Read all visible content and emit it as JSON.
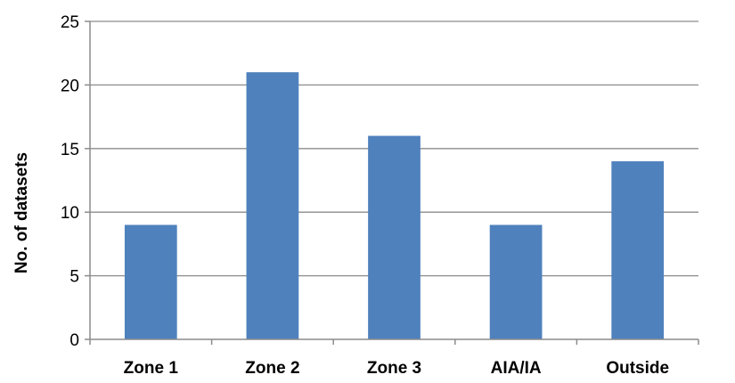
{
  "chart_data": {
    "type": "bar",
    "categories": [
      "Zone 1",
      "Zone 2",
      "Zone 3",
      "AIA/IA",
      "Outside"
    ],
    "values": [
      9,
      21,
      16,
      9,
      14
    ],
    "title": "",
    "xlabel": "",
    "ylabel": "No. of datasets",
    "ylim": [
      0,
      25
    ],
    "yticks": [
      "0",
      "5",
      "10",
      "15",
      "20",
      "25"
    ],
    "grid": true,
    "legend": "none",
    "colors": {
      "bar": "#4f81bd",
      "grid": "#8c8c8c"
    }
  }
}
